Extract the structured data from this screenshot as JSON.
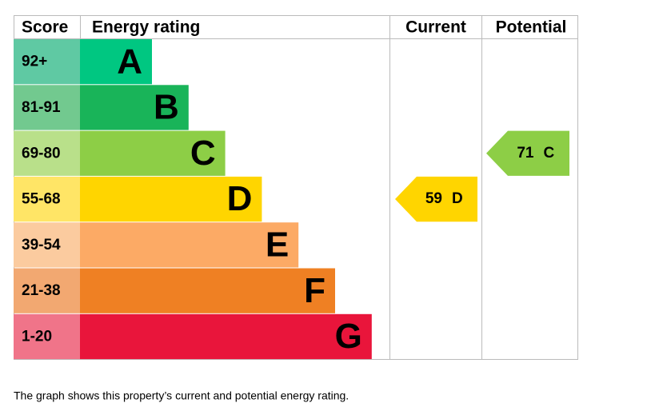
{
  "chart_data": {
    "type": "energy-rating",
    "headers": {
      "score": "Score",
      "rating": "Energy rating",
      "current": "Current",
      "potential": "Potential"
    },
    "bands": [
      {
        "score": "92+",
        "letter": "A",
        "color": "#00c781",
        "score_color": "#5fc9a3"
      },
      {
        "score": "81-91",
        "letter": "B",
        "color": "#19b459",
        "score_color": "#72c98f"
      },
      {
        "score": "69-80",
        "letter": "C",
        "color": "#8dce46",
        "score_color": "#b9e08a"
      },
      {
        "score": "55-68",
        "letter": "D",
        "color": "#ffd500",
        "score_color": "#ffe566"
      },
      {
        "score": "39-54",
        "letter": "E",
        "color": "#fcaa65",
        "score_color": "#fbcb9f"
      },
      {
        "score": "21-38",
        "letter": "F",
        "color": "#ef8023",
        "score_color": "#f2a871"
      },
      {
        "score": "1-20",
        "letter": "G",
        "color": "#e9153b",
        "score_color": "#f07489"
      }
    ],
    "current": {
      "value": 59,
      "rating": "D"
    },
    "potential": {
      "value": 71,
      "rating": "C"
    },
    "caption": "The graph shows this property’s current and potential energy rating."
  }
}
